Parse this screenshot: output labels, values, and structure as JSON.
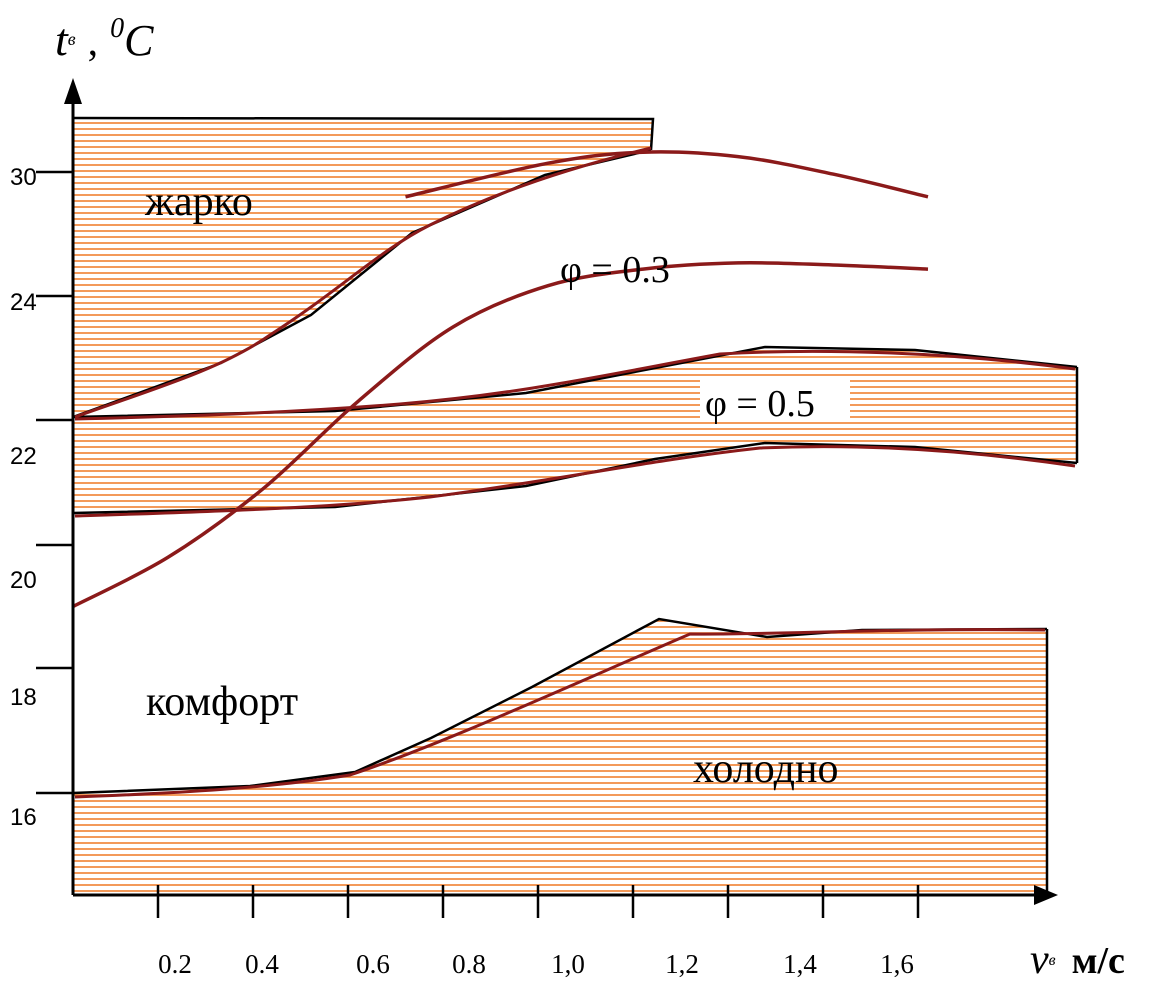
{
  "chart_data": {
    "type": "line",
    "xlabel": {
      "symbol": "v",
      "subscript": "в",
      "unit": "м/с"
    },
    "ylabel": {
      "symbol": "t",
      "subscript": "в",
      "unit_sup": "0",
      "unit": "C"
    },
    "x_ticks": [
      "0.2",
      "0.4",
      "0.6",
      "0.8",
      "1,0",
      "1,2",
      "1,4",
      "1,6"
    ],
    "y_ticks": [
      "16",
      "18",
      "20",
      "22",
      "24",
      "30"
    ],
    "regions": {
      "hot": "жарко",
      "comfort": "комфорт",
      "cold": "холодно"
    },
    "series": [
      {
        "name": "φ = 0.3",
        "x": [
          0.0,
          0.2,
          0.4,
          0.5,
          0.7,
          1.0,
          1.2,
          1.4,
          1.6,
          1.8
        ],
        "y": [
          22.0,
          23.0,
          24.8,
          26.2,
          28.8,
          30.4,
          30.9,
          30.7,
          29.9,
          28.8
        ]
      },
      {
        "name": "φ = 0.5",
        "x": [
          0.0,
          0.2,
          0.4,
          0.6,
          0.8,
          1.0,
          1.2,
          1.4,
          1.6,
          1.8
        ],
        "y": [
          19.0,
          19.8,
          20.9,
          22.3,
          23.5,
          24.5,
          25.3,
          25.6,
          25.5,
          25.3
        ]
      }
    ],
    "comfort_bands": [
      {
        "x": [
          0.0,
          0.3,
          0.6,
          0.95,
          1.3,
          1.45,
          1.6,
          1.8
        ],
        "y": [
          22.0,
          22.2,
          22.5,
          23.3,
          25.7,
          26.4,
          26.3,
          25.6
        ]
      },
      {
        "x": [
          0.0,
          0.3,
          0.6,
          0.95,
          1.3,
          1.45,
          1.6,
          1.8
        ],
        "y": [
          20.1,
          20.2,
          20.5,
          21.4,
          22.8,
          22.9,
          22.6,
          21.9
        ]
      },
      {
        "x": [
          0.0,
          0.3,
          0.6,
          0.95,
          1.3,
          1.45,
          1.6,
          1.8
        ],
        "y": [
          17.4,
          17.7,
          18.3,
          20.3,
          22.2,
          22.6,
          22.6,
          22.6
        ]
      }
    ],
    "grid": false,
    "legend": "none"
  }
}
